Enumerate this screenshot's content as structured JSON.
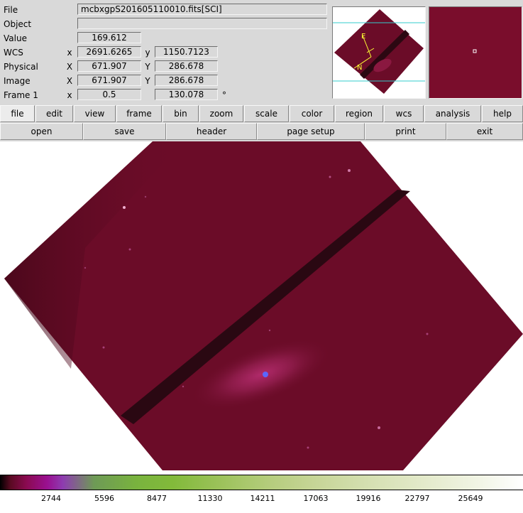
{
  "info": {
    "file": {
      "label": "File",
      "value": "mcbxgpS201605110010.fits[SCI]"
    },
    "object": {
      "label": "Object",
      "value": ""
    },
    "value": {
      "label": "Value",
      "value": "169.612"
    },
    "wcs": {
      "label": "WCS",
      "x_axis": "x",
      "x": "2691.6265",
      "y_axis": "y",
      "y": "1150.7123"
    },
    "physical": {
      "label": "Physical",
      "x_axis": "X",
      "x": "671.907",
      "y_axis": "Y",
      "y": "286.678"
    },
    "image": {
      "label": "Image",
      "x_axis": "X",
      "x": "671.907",
      "y_axis": "Y",
      "y": "286.678"
    },
    "frame": {
      "label": "Frame 1",
      "x_axis": "x",
      "zoom": "0.5",
      "angle": "130.078",
      "unit": "°"
    }
  },
  "panner": {
    "compass_east": "E",
    "compass_north": "N"
  },
  "menubar": [
    {
      "label": "file",
      "active": true
    },
    {
      "label": "edit"
    },
    {
      "label": "view"
    },
    {
      "label": "frame"
    },
    {
      "label": "bin"
    },
    {
      "label": "zoom"
    },
    {
      "label": "scale"
    },
    {
      "label": "color"
    },
    {
      "label": "region"
    },
    {
      "label": "wcs"
    },
    {
      "label": "analysis"
    },
    {
      "label": "help"
    }
  ],
  "toolbar": [
    {
      "label": "open"
    },
    {
      "label": "save"
    },
    {
      "label": "header"
    },
    {
      "label": "page setup"
    },
    {
      "label": "print"
    },
    {
      "label": "exit"
    }
  ],
  "colorbar": {
    "ticks": [
      "2744",
      "5596",
      "8477",
      "11330",
      "14211",
      "17063",
      "19916",
      "22797",
      "25649"
    ]
  },
  "colors": {
    "image_bg": "#6b0c28",
    "stripe": "#2a0812",
    "compass": "#ffff33",
    "panner_box": "#33cccc"
  }
}
